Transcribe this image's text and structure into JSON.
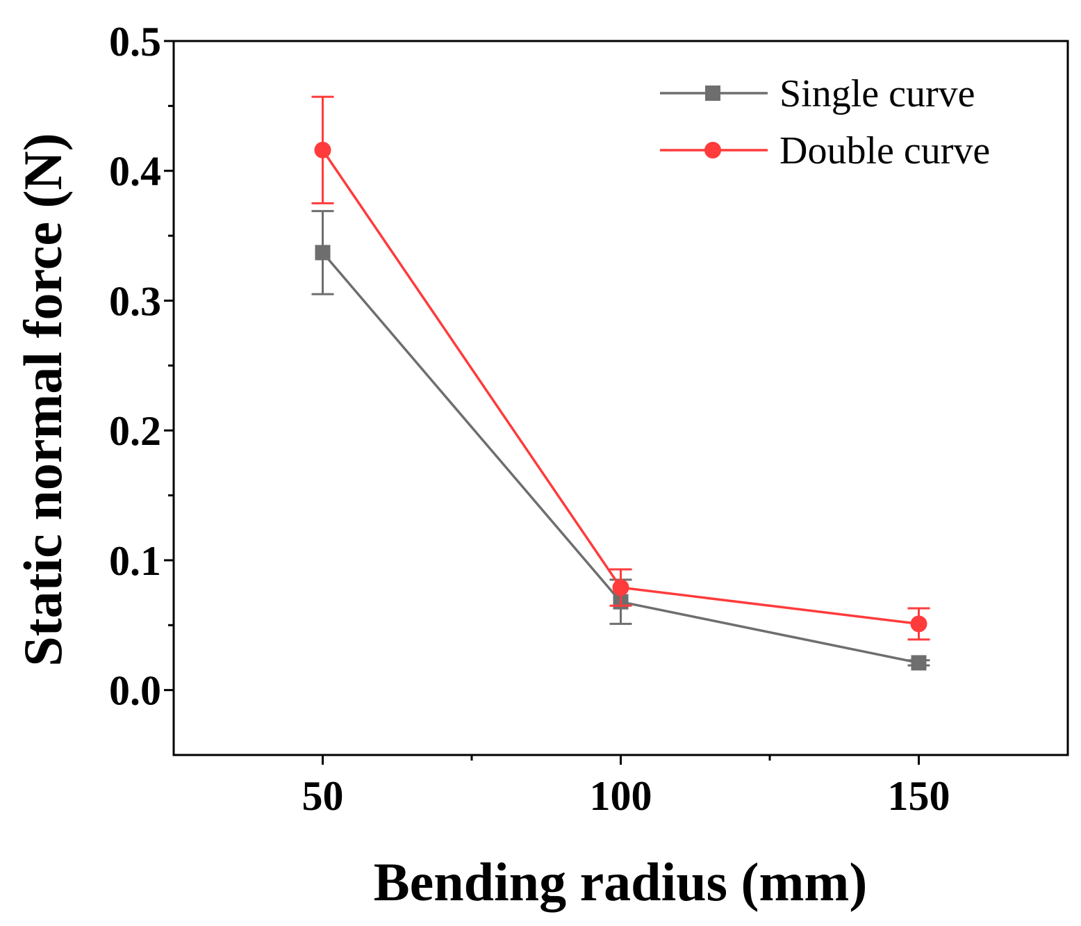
{
  "chart_data": {
    "type": "line",
    "title": "",
    "xlabel": "Bending radius (mm)",
    "ylabel": "Static normal force (N)",
    "xlim": [
      25,
      175
    ],
    "ylim": [
      -0.05,
      0.5
    ],
    "x": [
      50,
      100,
      150
    ],
    "x_ticks": [
      50,
      100,
      150
    ],
    "x_tick_labels": [
      "50",
      "100",
      "150"
    ],
    "x_minor_ticks": [
      75,
      125
    ],
    "y_ticks": [
      0.0,
      0.1,
      0.2,
      0.3,
      0.4,
      0.5
    ],
    "y_tick_labels": [
      "0.0",
      "0.1",
      "0.2",
      "0.3",
      "0.4",
      "0.5"
    ],
    "y_minor_ticks": [
      0.05,
      0.15,
      0.25,
      0.35,
      0.45
    ],
    "grid": false,
    "legend_position": "top-right",
    "series": [
      {
        "name": "Single curve",
        "marker": "square",
        "color": "#6e6e6e",
        "values": [
          0.337,
          0.068,
          0.021
        ],
        "errors": [
          0.032,
          0.017,
          0.002
        ]
      },
      {
        "name": "Double curve",
        "marker": "circle",
        "color": "#ff3b3b",
        "values": [
          0.416,
          0.079,
          0.051
        ],
        "errors": [
          0.041,
          0.014,
          0.012
        ]
      }
    ]
  }
}
